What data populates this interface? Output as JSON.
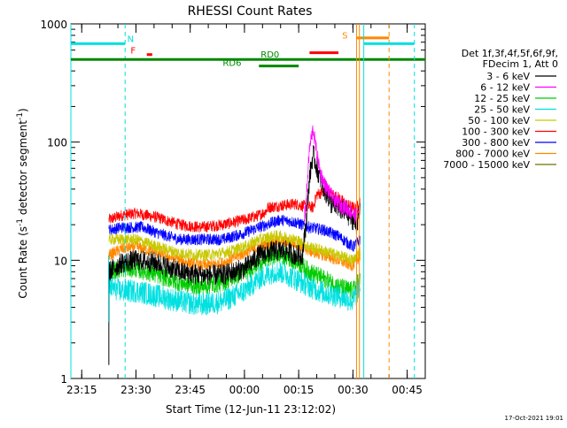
{
  "chart_data": {
    "type": "line",
    "title": "RHESSI Count Rates",
    "xlabel": "Start Time (12-Jun-11 23:12:02)",
    "ylabel_parts": [
      "Count Rate (s",
      "-1",
      " detector segment",
      "-1",
      ")"
    ],
    "yscale": "log",
    "ylim": [
      1,
      1000
    ],
    "xlim_min": [
      0,
      98
    ],
    "y_tick_labels": [
      "1",
      "10",
      "100",
      "1000"
    ],
    "y_tick_values": [
      1,
      10,
      100,
      1000
    ],
    "x_tick_labels": [
      "23:15",
      "23:30",
      "23:45",
      "00:00",
      "00:15",
      "00:30",
      "00:45"
    ],
    "x_tick_minutes": [
      3,
      18,
      33,
      48,
      63,
      78,
      93
    ],
    "legend": {
      "placement": "right",
      "header": [
        "Det 1f,3f,4f,5f,6f,9f,",
        "FDecim 1, Att 0"
      ],
      "entries": [
        {
          "label": "3 - 6 keV",
          "color": "#000000"
        },
        {
          "label": "6 - 12 keV",
          "color": "#ff00ff"
        },
        {
          "label": "12 - 25 keV",
          "color": "#00cc00"
        },
        {
          "label": "25 - 50 keV",
          "color": "#00e0e0"
        },
        {
          "label": "50 - 100 keV",
          "color": "#c8c800"
        },
        {
          "label": "100 - 300 keV",
          "color": "#ff0000"
        },
        {
          "label": "300 - 800 keV",
          "color": "#0000ff"
        },
        {
          "label": "800 - 7000 keV",
          "color": "#ff8800"
        },
        {
          "label": "7000 - 15000 keV",
          "color": "#707000"
        }
      ]
    },
    "series": [
      {
        "name": "100 - 300 keV",
        "color": "#ff0000",
        "noise": 0.05,
        "points": [
          [
            10.5,
            22
          ],
          [
            14,
            24
          ],
          [
            18,
            25
          ],
          [
            24,
            23
          ],
          [
            30,
            20
          ],
          [
            36,
            19
          ],
          [
            42,
            20
          ],
          [
            48,
            22
          ],
          [
            52,
            24
          ],
          [
            54,
            26
          ],
          [
            54.5,
            28
          ],
          [
            58,
            29
          ],
          [
            62,
            30
          ],
          [
            64,
            29
          ],
          [
            67,
            28
          ],
          [
            68,
            36
          ],
          [
            70,
            38
          ],
          [
            72,
            36
          ],
          [
            74,
            34
          ],
          [
            76,
            30
          ],
          [
            78,
            28
          ],
          [
            79,
            27
          ],
          [
            80,
            33
          ]
        ]
      },
      {
        "name": "300 - 800 keV",
        "color": "#0000ff",
        "noise": 0.05,
        "points": [
          [
            10.5,
            18
          ],
          [
            14,
            19
          ],
          [
            20,
            19
          ],
          [
            24,
            17
          ],
          [
            30,
            15
          ],
          [
            36,
            15
          ],
          [
            42,
            15
          ],
          [
            48,
            17
          ],
          [
            52,
            19
          ],
          [
            56,
            21
          ],
          [
            58,
            22
          ],
          [
            62,
            21
          ],
          [
            66,
            19
          ],
          [
            70,
            18
          ],
          [
            74,
            16
          ],
          [
            78,
            13
          ],
          [
            80,
            15
          ]
        ]
      },
      {
        "name": "800 - 7000 keV",
        "color": "#ff8800",
        "noise": 0.05,
        "points": [
          [
            10.5,
            11
          ],
          [
            14,
            12.5
          ],
          [
            18,
            13
          ],
          [
            24,
            11.5
          ],
          [
            30,
            10
          ],
          [
            36,
            9
          ],
          [
            42,
            9.5
          ],
          [
            48,
            11.5
          ],
          [
            52,
            13
          ],
          [
            56,
            14.5
          ],
          [
            58,
            14.5
          ],
          [
            62,
            14
          ],
          [
            66,
            12
          ],
          [
            70,
            11
          ],
          [
            74,
            10
          ],
          [
            78,
            9
          ],
          [
            80,
            11
          ]
        ]
      },
      {
        "name": "50 - 100 keV",
        "color": "#c8c800",
        "noise": 0.05,
        "points": [
          [
            10.5,
            15
          ],
          [
            14,
            15
          ],
          [
            18,
            15
          ],
          [
            24,
            13
          ],
          [
            30,
            11.5
          ],
          [
            36,
            11
          ],
          [
            42,
            11.5
          ],
          [
            48,
            13
          ],
          [
            52,
            15
          ],
          [
            56,
            16
          ],
          [
            58,
            16
          ],
          [
            62,
            15
          ],
          [
            66,
            13
          ],
          [
            70,
            12
          ],
          [
            74,
            11
          ],
          [
            78,
            10
          ],
          [
            80,
            12
          ]
        ]
      },
      {
        "name": "12 - 25 keV",
        "color": "#00cc00",
        "noise": 0.08,
        "points": [
          [
            10.5,
            8
          ],
          [
            14,
            8.5
          ],
          [
            18,
            8.5
          ],
          [
            24,
            7.5
          ],
          [
            30,
            6.5
          ],
          [
            36,
            6
          ],
          [
            42,
            6.5
          ],
          [
            48,
            8
          ],
          [
            52,
            9.5
          ],
          [
            56,
            11
          ],
          [
            58,
            11
          ],
          [
            62,
            10
          ],
          [
            66,
            8
          ],
          [
            70,
            7
          ],
          [
            74,
            6
          ],
          [
            78,
            5.5
          ],
          [
            80,
            7
          ]
        ]
      },
      {
        "name": "25 - 50 keV",
        "color": "#00e0e0",
        "noise": 0.1,
        "points": [
          [
            10.5,
            6
          ],
          [
            14,
            5.5
          ],
          [
            18,
            5.5
          ],
          [
            24,
            5
          ],
          [
            30,
            4.5
          ],
          [
            36,
            4.2
          ],
          [
            42,
            4.5
          ],
          [
            48,
            5.5
          ],
          [
            52,
            7
          ],
          [
            56,
            8
          ],
          [
            58,
            8
          ],
          [
            62,
            7
          ],
          [
            66,
            6
          ],
          [
            70,
            5.3
          ],
          [
            74,
            5
          ],
          [
            78,
            4.5
          ],
          [
            80,
            6
          ]
        ]
      },
      {
        "name": "3 - 6 keV",
        "color": "#000000",
        "noise": 0.09,
        "points": [
          [
            10.5,
            8
          ],
          [
            14,
            9.5
          ],
          [
            18,
            10
          ],
          [
            24,
            9.5
          ],
          [
            30,
            8
          ],
          [
            36,
            7.5
          ],
          [
            42,
            7.5
          ],
          [
            48,
            8.5
          ],
          [
            52,
            11
          ],
          [
            56,
            12
          ],
          [
            58,
            12
          ],
          [
            60,
            12
          ],
          [
            62,
            11
          ],
          [
            64,
            11
          ],
          [
            65,
            20
          ],
          [
            66,
            50
          ],
          [
            67,
            80
          ],
          [
            68,
            60
          ],
          [
            70,
            40
          ],
          [
            72,
            30
          ],
          [
            74,
            28
          ],
          [
            76,
            25
          ],
          [
            78,
            22
          ],
          [
            79,
            20
          ],
          [
            80,
            27
          ]
        ]
      },
      {
        "name": "6 - 12 keV",
        "color": "#ff00ff",
        "noise": 0.07,
        "points": [
          [
            64.5,
            22
          ],
          [
            65,
            30
          ],
          [
            66,
            90
          ],
          [
            67,
            130
          ],
          [
            68,
            80
          ],
          [
            69,
            55
          ],
          [
            70,
            45
          ],
          [
            72,
            35
          ],
          [
            74,
            30
          ],
          [
            76,
            28
          ],
          [
            78,
            25
          ],
          [
            79,
            23
          ],
          [
            80,
            30
          ]
        ]
      }
    ],
    "markers": [
      {
        "label": "N",
        "color": "#00e0e0",
        "y_level": 680,
        "segments": [
          [
            0,
            15
          ]
        ],
        "dashed_lines": [
          15
        ],
        "solid_lines": [
          0
        ]
      },
      {
        "label": "F",
        "color": "#ff0000",
        "y_level": 550,
        "segments": [
          [
            21,
            22.5
          ]
        ],
        "label_color": "#ff0000"
      },
      {
        "label": "RD0",
        "color": "#008800",
        "y_level": 500,
        "segments": [
          [
            0,
            98
          ]
        ],
        "label_color": "#008800"
      },
      {
        "label": "RD6",
        "color": "#008800",
        "y_level": 440,
        "segments": [
          [
            52,
            63
          ]
        ],
        "label_color": "#008800"
      },
      {
        "label": "",
        "color": "#ff0000",
        "y_level": 570,
        "segments": [
          [
            66,
            74
          ]
        ]
      },
      {
        "label": "S",
        "color": "#ff8800",
        "y_level": 760,
        "segments": [
          [
            79,
            88
          ]
        ],
        "solid_lines": [
          79
        ],
        "dashed_lines": [
          88
        ],
        "label_color": "#ff8800"
      }
    ],
    "cyan_right": {
      "color": "#00e0e0",
      "y_level": 680,
      "segments": [
        [
          81,
          95
        ]
      ],
      "solid_lines": [
        81
      ],
      "dashed_lines": [
        95
      ]
    },
    "footer_date": "17-Oct-2021 19:01"
  }
}
